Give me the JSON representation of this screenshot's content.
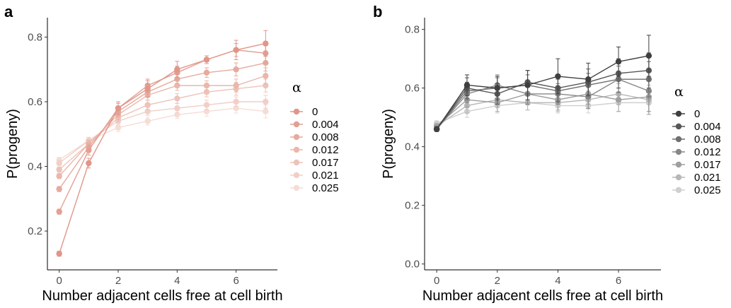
{
  "chart_data": [
    {
      "type": "line",
      "panel_label": "a",
      "xlabel": "Number adjacent cells free at cell birth",
      "ylabel": "P(progeny)",
      "x": [
        0,
        1,
        2,
        3,
        4,
        5,
        6,
        7
      ],
      "xticks": [
        0,
        2,
        4,
        6
      ],
      "xlim": [
        -0.4,
        7.4
      ],
      "ylim": [
        0.08,
        0.86
      ],
      "yticks": [
        0.2,
        0.4,
        0.6,
        0.8
      ],
      "ytick_labels": [
        "0.2",
        "0.4",
        "0.6",
        "0.8"
      ],
      "grid": false,
      "legend_title": "α",
      "legend_position": "right",
      "series": [
        {
          "name": "0",
          "color": "#e0968a",
          "values": [
            0.13,
            0.41,
            0.58,
            0.64,
            0.7,
            0.73,
            0.76,
            0.78
          ],
          "err": [
            0.008,
            0.015,
            0.02,
            0.025,
            0.025,
            0.012,
            0.03,
            0.04
          ]
        },
        {
          "name": "0.004",
          "color": "#e2a092",
          "values": [
            0.26,
            0.45,
            0.58,
            0.65,
            0.69,
            0.73,
            0.76,
            0.75
          ],
          "err": [
            0.008,
            0.015,
            0.015,
            0.02,
            0.02,
            0.012,
            0.02,
            0.03
          ]
        },
        {
          "name": "0.008",
          "color": "#e6ab9e",
          "values": [
            0.33,
            0.46,
            0.57,
            0.63,
            0.67,
            0.69,
            0.7,
            0.72
          ],
          "err": [
            0.008,
            0.012,
            0.015,
            0.015,
            0.015,
            0.015,
            0.02,
            0.025
          ]
        },
        {
          "name": "0.012",
          "color": "#eab7ab",
          "values": [
            0.37,
            0.47,
            0.56,
            0.62,
            0.65,
            0.65,
            0.65,
            0.68
          ],
          "err": [
            0.008,
            0.012,
            0.015,
            0.015,
            0.015,
            0.015,
            0.02,
            0.025
          ]
        },
        {
          "name": "0.017",
          "color": "#edc3b9",
          "values": [
            0.39,
            0.47,
            0.55,
            0.59,
            0.61,
            0.63,
            0.64,
            0.65
          ],
          "err": [
            0.008,
            0.01,
            0.012,
            0.015,
            0.015,
            0.015,
            0.02,
            0.02
          ]
        },
        {
          "name": "0.021",
          "color": "#f1cfc7",
          "values": [
            0.41,
            0.48,
            0.54,
            0.57,
            0.58,
            0.59,
            0.6,
            0.6
          ],
          "err": [
            0.008,
            0.01,
            0.012,
            0.012,
            0.015,
            0.015,
            0.015,
            0.02
          ]
        },
        {
          "name": "0.025",
          "color": "#f5dcd5",
          "values": [
            0.42,
            0.48,
            0.52,
            0.54,
            0.56,
            0.57,
            0.58,
            0.57
          ],
          "err": [
            0.008,
            0.01,
            0.012,
            0.012,
            0.012,
            0.015,
            0.015,
            0.02
          ]
        }
      ]
    },
    {
      "type": "line",
      "panel_label": "b",
      "xlabel": "Number adjacent cells free at cell birth",
      "ylabel": "P(progeny)",
      "x": [
        0,
        1,
        2,
        3,
        4,
        5,
        6,
        7
      ],
      "xticks": [
        0,
        2,
        4,
        6
      ],
      "xlim": [
        -0.4,
        7.4
      ],
      "ylim": [
        -0.02,
        0.84
      ],
      "yticks": [
        0.0,
        0.2,
        0.4,
        0.6,
        0.8
      ],
      "ytick_labels": [
        "0.0",
        "0.2",
        "0.4",
        "0.6",
        "0.8"
      ],
      "grid": false,
      "legend_title": "α",
      "legend_position": "right",
      "series": [
        {
          "name": "0",
          "color": "#3f3f3f",
          "values": [
            0.46,
            0.61,
            0.6,
            0.61,
            0.64,
            0.63,
            0.69,
            0.71
          ],
          "err": [
            0.008,
            0.035,
            0.04,
            0.05,
            0.06,
            0.055,
            0.05,
            0.07
          ]
        },
        {
          "name": "0.004",
          "color": "#575757",
          "values": [
            0.46,
            0.6,
            0.58,
            0.62,
            0.6,
            0.62,
            0.65,
            0.66
          ],
          "err": [
            0.008,
            0.035,
            0.035,
            0.04,
            0.045,
            0.045,
            0.05,
            0.06
          ]
        },
        {
          "name": "0.008",
          "color": "#6f6f6f",
          "values": [
            0.46,
            0.59,
            0.6,
            0.61,
            0.59,
            0.61,
            0.63,
            0.63
          ],
          "err": [
            0.008,
            0.03,
            0.035,
            0.035,
            0.04,
            0.04,
            0.045,
            0.06
          ]
        },
        {
          "name": "0.012",
          "color": "#878787",
          "values": [
            0.46,
            0.58,
            0.61,
            0.58,
            0.58,
            0.57,
            0.63,
            0.59
          ],
          "err": [
            0.008,
            0.03,
            0.035,
            0.035,
            0.035,
            0.04,
            0.045,
            0.07
          ]
        },
        {
          "name": "0.017",
          "color": "#9f9f9f",
          "values": [
            0.47,
            0.56,
            0.55,
            0.58,
            0.56,
            0.58,
            0.56,
            0.57
          ],
          "err": [
            0.008,
            0.025,
            0.03,
            0.03,
            0.035,
            0.035,
            0.04,
            0.06
          ]
        },
        {
          "name": "0.021",
          "color": "#b7b7b7",
          "values": [
            0.47,
            0.54,
            0.56,
            0.55,
            0.55,
            0.56,
            0.58,
            0.56
          ],
          "err": [
            0.008,
            0.025,
            0.025,
            0.025,
            0.03,
            0.03,
            0.035,
            0.05
          ]
        },
        {
          "name": "0.025",
          "color": "#cfcfcf",
          "values": [
            0.48,
            0.52,
            0.54,
            0.55,
            0.54,
            0.54,
            0.55,
            0.55
          ],
          "err": [
            0.008,
            0.02,
            0.025,
            0.025,
            0.025,
            0.025,
            0.03,
            0.04
          ]
        }
      ]
    }
  ]
}
